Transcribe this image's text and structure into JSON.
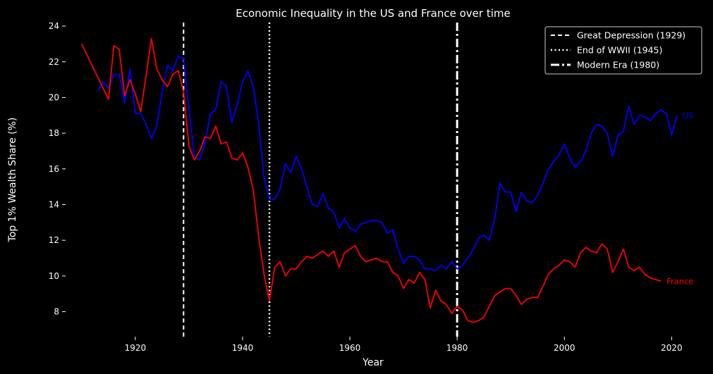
{
  "chart_data": {
    "type": "line",
    "title": "Economic Inequality in the US and France over time",
    "xlabel": "Year",
    "ylabel": "Top 1% Wealth Share (%)",
    "xlim": [
      1907,
      2026
    ],
    "ylim": [
      6.6,
      24.2
    ],
    "xticks": [
      1920,
      1940,
      1960,
      1980,
      2000,
      2020
    ],
    "yticks": [
      8,
      10,
      12,
      14,
      16,
      18,
      20,
      22,
      24
    ],
    "grid": false,
    "legend_position": "top-right",
    "legend": [
      {
        "label": "Great Depression (1929)",
        "x": 1929,
        "style": "dashed",
        "color": "#ffffff"
      },
      {
        "label": "End of WWII (1945)",
        "x": 1945,
        "style": "dotted",
        "color": "#ffffff"
      },
      {
        "label": "Modern Era (1980)",
        "x": 1980,
        "style": "dashdot",
        "color": "#ffffff"
      }
    ],
    "series": [
      {
        "name": "US",
        "color": "#0000ff",
        "label_color": "#0000ff",
        "points": [
          [
            1913,
            20.4
          ],
          [
            1914,
            20.9
          ],
          [
            1915,
            20.5
          ],
          [
            1916,
            21.3
          ],
          [
            1917,
            21.3
          ],
          [
            1918,
            19.7
          ],
          [
            1919,
            21.6
          ],
          [
            1920,
            19.1
          ],
          [
            1921,
            19.1
          ],
          [
            1922,
            18.5
          ],
          [
            1923,
            17.7
          ],
          [
            1924,
            18.4
          ],
          [
            1925,
            20.3
          ],
          [
            1926,
            21.8
          ],
          [
            1927,
            21.5
          ],
          [
            1928,
            22.3
          ],
          [
            1929,
            22.2
          ],
          [
            1930,
            19.4
          ],
          [
            1931,
            16.7
          ],
          [
            1932,
            16.5
          ],
          [
            1933,
            17.4
          ],
          [
            1934,
            19.1
          ],
          [
            1935,
            19.3
          ],
          [
            1936,
            20.9
          ],
          [
            1937,
            20.6
          ],
          [
            1938,
            18.6
          ],
          [
            1939,
            19.6
          ],
          [
            1940,
            20.9
          ],
          [
            1941,
            21.5
          ],
          [
            1942,
            20.6
          ],
          [
            1943,
            18.5
          ],
          [
            1944,
            15.5
          ],
          [
            1945,
            14.3
          ],
          [
            1946,
            14.3
          ],
          [
            1947,
            14.9
          ],
          [
            1948,
            16.3
          ],
          [
            1949,
            15.8
          ],
          [
            1950,
            16.7
          ],
          [
            1951,
            16.0
          ],
          [
            1952,
            15.0
          ],
          [
            1953,
            14.0
          ],
          [
            1954,
            13.9
          ],
          [
            1955,
            14.6
          ],
          [
            1956,
            13.8
          ],
          [
            1957,
            13.6
          ],
          [
            1958,
            12.7
          ],
          [
            1959,
            13.2
          ],
          [
            1960,
            12.7
          ],
          [
            1961,
            12.5
          ],
          [
            1962,
            12.9
          ],
          [
            1963,
            13.0
          ],
          [
            1964,
            13.1
          ],
          [
            1965,
            13.1
          ],
          [
            1966,
            13.0
          ],
          [
            1967,
            12.4
          ],
          [
            1968,
            12.6
          ],
          [
            1969,
            11.5
          ],
          [
            1970,
            10.7
          ],
          [
            1971,
            11.1
          ],
          [
            1972,
            11.1
          ],
          [
            1973,
            10.9
          ],
          [
            1974,
            10.4
          ],
          [
            1975,
            10.4
          ],
          [
            1976,
            10.3
          ],
          [
            1977,
            10.6
          ],
          [
            1978,
            10.4
          ],
          [
            1979,
            10.8
          ],
          [
            1980,
            10.4
          ],
          [
            1981,
            10.6
          ],
          [
            1982,
            11.0
          ],
          [
            1983,
            11.5
          ],
          [
            1984,
            12.1
          ],
          [
            1985,
            12.3
          ],
          [
            1986,
            12.0
          ],
          [
            1987,
            13.2
          ],
          [
            1988,
            15.2
          ],
          [
            1989,
            14.7
          ],
          [
            1990,
            14.7
          ],
          [
            1991,
            13.6
          ],
          [
            1992,
            14.7
          ],
          [
            1993,
            14.2
          ],
          [
            1994,
            14.1
          ],
          [
            1995,
            14.5
          ],
          [
            1996,
            15.2
          ],
          [
            1997,
            16.0
          ],
          [
            1998,
            16.4
          ],
          [
            1999,
            16.8
          ],
          [
            2000,
            17.4
          ],
          [
            2001,
            16.6
          ],
          [
            2002,
            16.1
          ],
          [
            2003,
            16.4
          ],
          [
            2004,
            17.0
          ],
          [
            2005,
            18.0
          ],
          [
            2006,
            18.5
          ],
          [
            2007,
            18.4
          ],
          [
            2008,
            18.0
          ],
          [
            2009,
            16.7
          ],
          [
            2010,
            17.9
          ],
          [
            2011,
            18.1
          ],
          [
            2012,
            19.5
          ],
          [
            2013,
            18.5
          ],
          [
            2014,
            19.0
          ],
          [
            2015,
            18.9
          ],
          [
            2016,
            18.7
          ],
          [
            2017,
            19.1
          ],
          [
            2018,
            19.3
          ],
          [
            2019,
            19.1
          ],
          [
            2020,
            17.9
          ],
          [
            2021,
            19.0
          ]
        ]
      },
      {
        "name": "France",
        "color": "#ff0000",
        "label_color": "#ff0000",
        "points": [
          [
            1910,
            23.0
          ],
          [
            1915,
            19.9
          ],
          [
            1916,
            22.9
          ],
          [
            1917,
            22.7
          ],
          [
            1918,
            20.1
          ],
          [
            1919,
            21.0
          ],
          [
            1920,
            20.2
          ],
          [
            1921,
            19.2
          ],
          [
            1922,
            21.2
          ],
          [
            1923,
            23.3
          ],
          [
            1924,
            21.6
          ],
          [
            1925,
            21.0
          ],
          [
            1926,
            20.6
          ],
          [
            1927,
            21.3
          ],
          [
            1928,
            21.5
          ],
          [
            1929,
            20.3
          ],
          [
            1930,
            17.3
          ],
          [
            1931,
            16.5
          ],
          [
            1932,
            17.0
          ],
          [
            1933,
            17.8
          ],
          [
            1934,
            17.7
          ],
          [
            1935,
            18.4
          ],
          [
            1936,
            17.4
          ],
          [
            1937,
            17.5
          ],
          [
            1938,
            16.6
          ],
          [
            1939,
            16.5
          ],
          [
            1940,
            16.9
          ],
          [
            1941,
            16.1
          ],
          [
            1942,
            14.8
          ],
          [
            1943,
            12.2
          ],
          [
            1944,
            10.1
          ],
          [
            1945,
            8.6
          ],
          [
            1946,
            10.5
          ],
          [
            1947,
            10.8
          ],
          [
            1948,
            10.0
          ],
          [
            1949,
            10.4
          ],
          [
            1950,
            10.4
          ],
          [
            1951,
            10.8
          ],
          [
            1952,
            11.1
          ],
          [
            1953,
            11.0
          ],
          [
            1954,
            11.2
          ],
          [
            1955,
            11.4
          ],
          [
            1956,
            11.1
          ],
          [
            1957,
            11.4
          ],
          [
            1958,
            10.5
          ],
          [
            1959,
            11.3
          ],
          [
            1960,
            11.5
          ],
          [
            1961,
            11.7
          ],
          [
            1962,
            11.1
          ],
          [
            1963,
            10.8
          ],
          [
            1964,
            10.9
          ],
          [
            1965,
            11.0
          ],
          [
            1966,
            10.8
          ],
          [
            1967,
            10.8
          ],
          [
            1968,
            10.2
          ],
          [
            1969,
            10.0
          ],
          [
            1970,
            9.3
          ],
          [
            1971,
            9.8
          ],
          [
            1972,
            9.6
          ],
          [
            1973,
            10.2
          ],
          [
            1974,
            9.8
          ],
          [
            1975,
            8.2
          ],
          [
            1976,
            9.2
          ],
          [
            1977,
            8.6
          ],
          [
            1978,
            8.4
          ],
          [
            1979,
            7.9
          ],
          [
            1980,
            8.3
          ],
          [
            1981,
            8.1
          ],
          [
            1982,
            7.5
          ],
          [
            1983,
            7.4
          ],
          [
            1984,
            7.5
          ],
          [
            1985,
            7.7
          ],
          [
            1986,
            8.3
          ],
          [
            1987,
            8.9
          ],
          [
            1988,
            9.1
          ],
          [
            1989,
            9.3
          ],
          [
            1990,
            9.3
          ],
          [
            1991,
            8.9
          ],
          [
            1992,
            8.4
          ],
          [
            1993,
            8.7
          ],
          [
            1994,
            8.8
          ],
          [
            1995,
            8.8
          ],
          [
            1996,
            9.4
          ],
          [
            1997,
            10.1
          ],
          [
            1998,
            10.4
          ],
          [
            1999,
            10.6
          ],
          [
            2000,
            10.9
          ],
          [
            2001,
            10.8
          ],
          [
            2002,
            10.5
          ],
          [
            2003,
            11.3
          ],
          [
            2004,
            11.6
          ],
          [
            2005,
            11.4
          ],
          [
            2006,
            11.3
          ],
          [
            2007,
            11.8
          ],
          [
            2008,
            11.5
          ],
          [
            2009,
            10.2
          ],
          [
            2010,
            10.8
          ],
          [
            2011,
            11.5
          ],
          [
            2012,
            10.5
          ],
          [
            2013,
            10.3
          ],
          [
            2014,
            10.5
          ],
          [
            2015,
            10.1
          ],
          [
            2016,
            9.9
          ],
          [
            2017,
            9.8
          ],
          [
            2018,
            9.7
          ]
        ]
      }
    ]
  }
}
